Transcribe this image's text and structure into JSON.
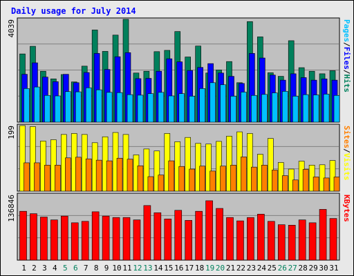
{
  "chart_data": {
    "type": "bar",
    "title": "Daily usage for July 2014",
    "categories": [
      "1",
      "2",
      "3",
      "4",
      "5",
      "6",
      "7",
      "8",
      "9",
      "10",
      "11",
      "12",
      "13",
      "14",
      "15",
      "16",
      "17",
      "18",
      "19",
      "20",
      "21",
      "22",
      "23",
      "24",
      "25",
      "26",
      "27",
      "28",
      "29",
      "30",
      "31"
    ],
    "weekend_days": [
      "5",
      "6",
      "12",
      "13",
      "19",
      "20",
      "26",
      "27"
    ],
    "panels": [
      {
        "id": "hits",
        "scale_max_label": "4039",
        "ymax": 4039,
        "right_label": [
          "Pages",
          "/",
          "Files",
          "/",
          "Hits"
        ],
        "right_label_colors": [
          "#00c0ff",
          "#000000",
          "#0000ff",
          "#000000",
          "#00805c"
        ],
        "series": [
          {
            "name": "Hits",
            "color": "#00805c",
            "values": [
              2680,
              2980,
              2000,
              1700,
              1870,
              1580,
              2200,
              3620,
              2780,
              3420,
              4039,
              1930,
              2000,
              2770,
              2820,
              3560,
              2560,
              2990,
              1930,
              2050,
              2380,
              1550,
              3950,
              3350,
              1940,
              1800,
              3200,
              2140,
              2000,
              1900,
              2020
            ]
          },
          {
            "name": "Files",
            "color": "#0000ff",
            "values": [
              1880,
              2330,
              1770,
              1590,
              1880,
              1550,
              1950,
              2700,
              2070,
              2570,
              2730,
              1710,
              1720,
              2000,
              2490,
              2370,
              2030,
              2150,
              2300,
              1930,
              1800,
              1520,
              2700,
              2520,
              1850,
              1650,
              1900,
              1750,
              1650,
              1700,
              1650
            ]
          },
          {
            "name": "Pages",
            "color": "#00c0ff",
            "values": [
              1320,
              1380,
              1050,
              1030,
              1200,
              1190,
              1350,
              1270,
              1170,
              1160,
              1080,
              1060,
              1120,
              1170,
              1030,
              1120,
              1020,
              1320,
              1550,
              1470,
              1020,
              1180,
              1050,
              1090,
              1150,
              1210,
              1020,
              1080,
              1070,
              1100,
              1050
            ]
          }
        ]
      },
      {
        "id": "sites",
        "scale_max_label": "199",
        "ymax": 199,
        "right_label": [
          "Sites",
          "/",
          "Visits"
        ],
        "right_label_colors": [
          "#ff8000",
          "#000000",
          "#ffff00"
        ],
        "series": [
          {
            "name": "Visits",
            "color": "#ffff00",
            "values": [
              199,
              196,
              152,
              156,
              172,
              175,
              172,
              147,
              165,
              178,
              172,
              110,
              128,
              122,
              175,
              150,
              163,
              145,
              143,
              151,
              167,
              180,
              175,
              112,
              160,
              87,
              67,
              91,
              79,
              80,
              93
            ]
          },
          {
            "name": "Sites",
            "color": "#ff8000",
            "values": [
              86,
              86,
              79,
              79,
              101,
              103,
              98,
              94,
              92,
              100,
              97,
              77,
              44,
              49,
              92,
              75,
              67,
              76,
              61,
              76,
              79,
              104,
              73,
              79,
              64,
              47,
              34,
              66,
              43,
              40,
              43
            ]
          }
        ]
      },
      {
        "id": "kbytes",
        "scale_max_label": "136846",
        "ymax": 136846,
        "right_label": [
          "KBytes"
        ],
        "right_label_colors": [
          "#ff0000"
        ],
        "series": [
          {
            "name": "KBytes",
            "color": "#ff0000",
            "values": [
              102000,
              97000,
              90000,
              84000,
              92000,
              78000,
              81000,
              101000,
              92000,
              89000,
              89000,
              84000,
              114000,
              99000,
              86000,
              104000,
              83000,
              102000,
              124000,
              108000,
              89000,
              82000,
              89000,
              96000,
              81000,
              74000,
              73000,
              84000,
              78000,
              106000,
              87000
            ]
          }
        ]
      }
    ]
  }
}
